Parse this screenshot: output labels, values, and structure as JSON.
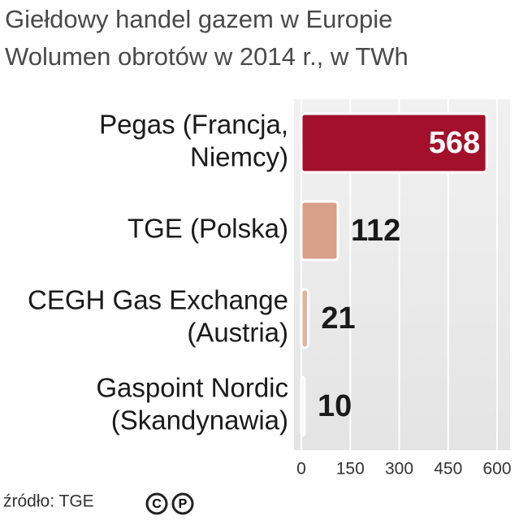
{
  "chart_data": {
    "type": "bar",
    "orientation": "horizontal",
    "title": "Giełdowy handel gazem w Europie",
    "subtitle": "Wolumen obrotów w 2014 r., w TWh",
    "categories": [
      [
        "Pegas (Francja,",
        "Niemcy)"
      ],
      [
        "TGE (Polska)"
      ],
      [
        "CEGH Gas Exchange",
        "(Austria)"
      ],
      [
        "Gaspoint Nordic",
        "(Skandynawia)"
      ]
    ],
    "values": [
      568,
      112,
      21,
      10
    ],
    "colors": [
      "#a3102b",
      "#d9a08a",
      "#e2b29f",
      "#ececec"
    ],
    "xlim": [
      0,
      600
    ],
    "xticks": [
      0,
      150,
      300,
      450,
      600
    ],
    "grid": true,
    "source": "źródło: TGE",
    "license_icons": [
      "C",
      "P"
    ]
  }
}
